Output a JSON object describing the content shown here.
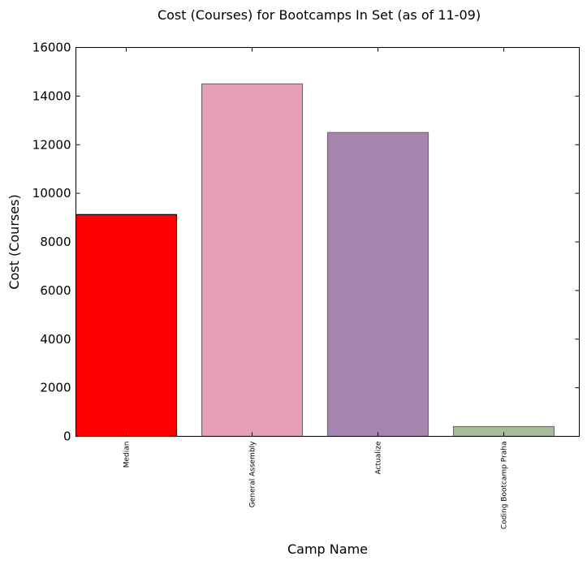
{
  "chart_data": {
    "type": "bar",
    "title": "Cost (Courses) for Bootcamps In Set (as of 11-09)",
    "xlabel": "Camp Name",
    "ylabel": "Cost (Courses)",
    "ylim": [
      0,
      16000
    ],
    "yticks": [
      0,
      2000,
      4000,
      6000,
      8000,
      10000,
      12000,
      14000,
      16000
    ],
    "categories": [
      "Median",
      "General Assembly",
      "Actualize",
      "Coding Bootcamp Praha"
    ],
    "values": [
      9125,
      14500,
      12500,
      400
    ],
    "colors": [
      "#ff0000",
      "#e8a0b8",
      "#a584ae",
      "#a4bc9a"
    ],
    "edge_colors": [
      "#000000",
      "#6f6f6f",
      "#6f6f6f",
      "#6f6f6f"
    ],
    "grid": false,
    "legend": "none"
  }
}
